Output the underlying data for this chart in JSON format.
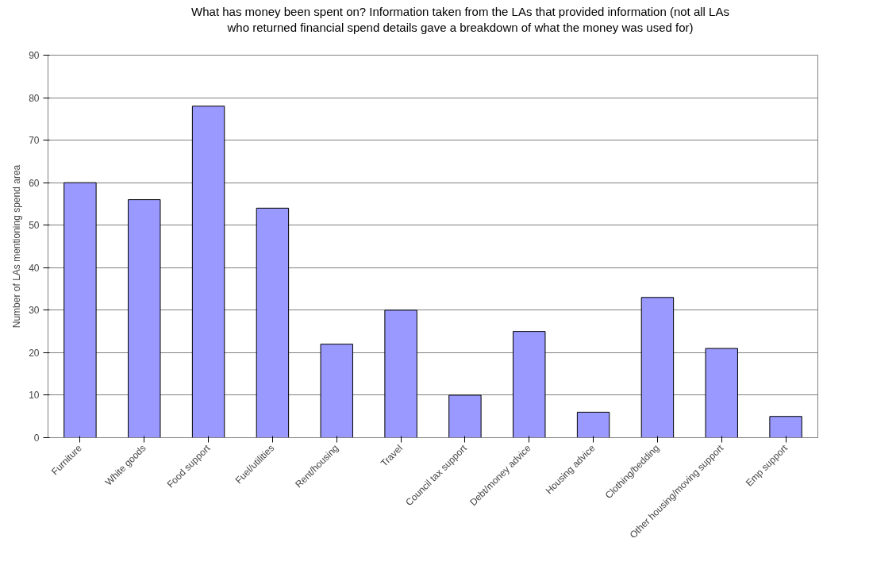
{
  "chart_data": {
    "type": "bar",
    "title": "What has money been spent on? Information taken from the LAs that provided information (not all LAs who returned financial spend details gave a breakdown of what the money was used for)",
    "ylabel": "Number of LAs mentioning spend area",
    "categories": [
      "Furniture",
      "White goods",
      "Food support",
      "Fuel/utilities",
      "Rent/housing",
      "Travel",
      "Council tax support",
      "Debt/money advice",
      "Housing advice",
      "Clothing/bedding",
      "Other housing/moving support",
      "Emp support"
    ],
    "values": [
      60,
      56,
      78,
      54,
      22,
      30,
      10,
      25,
      6,
      33,
      21,
      5
    ],
    "color": "#9999ff",
    "ylim": [
      0,
      90
    ],
    "yticks": [
      0,
      10,
      20,
      30,
      40,
      50,
      60,
      70,
      80,
      90
    ],
    "grid": "y"
  }
}
